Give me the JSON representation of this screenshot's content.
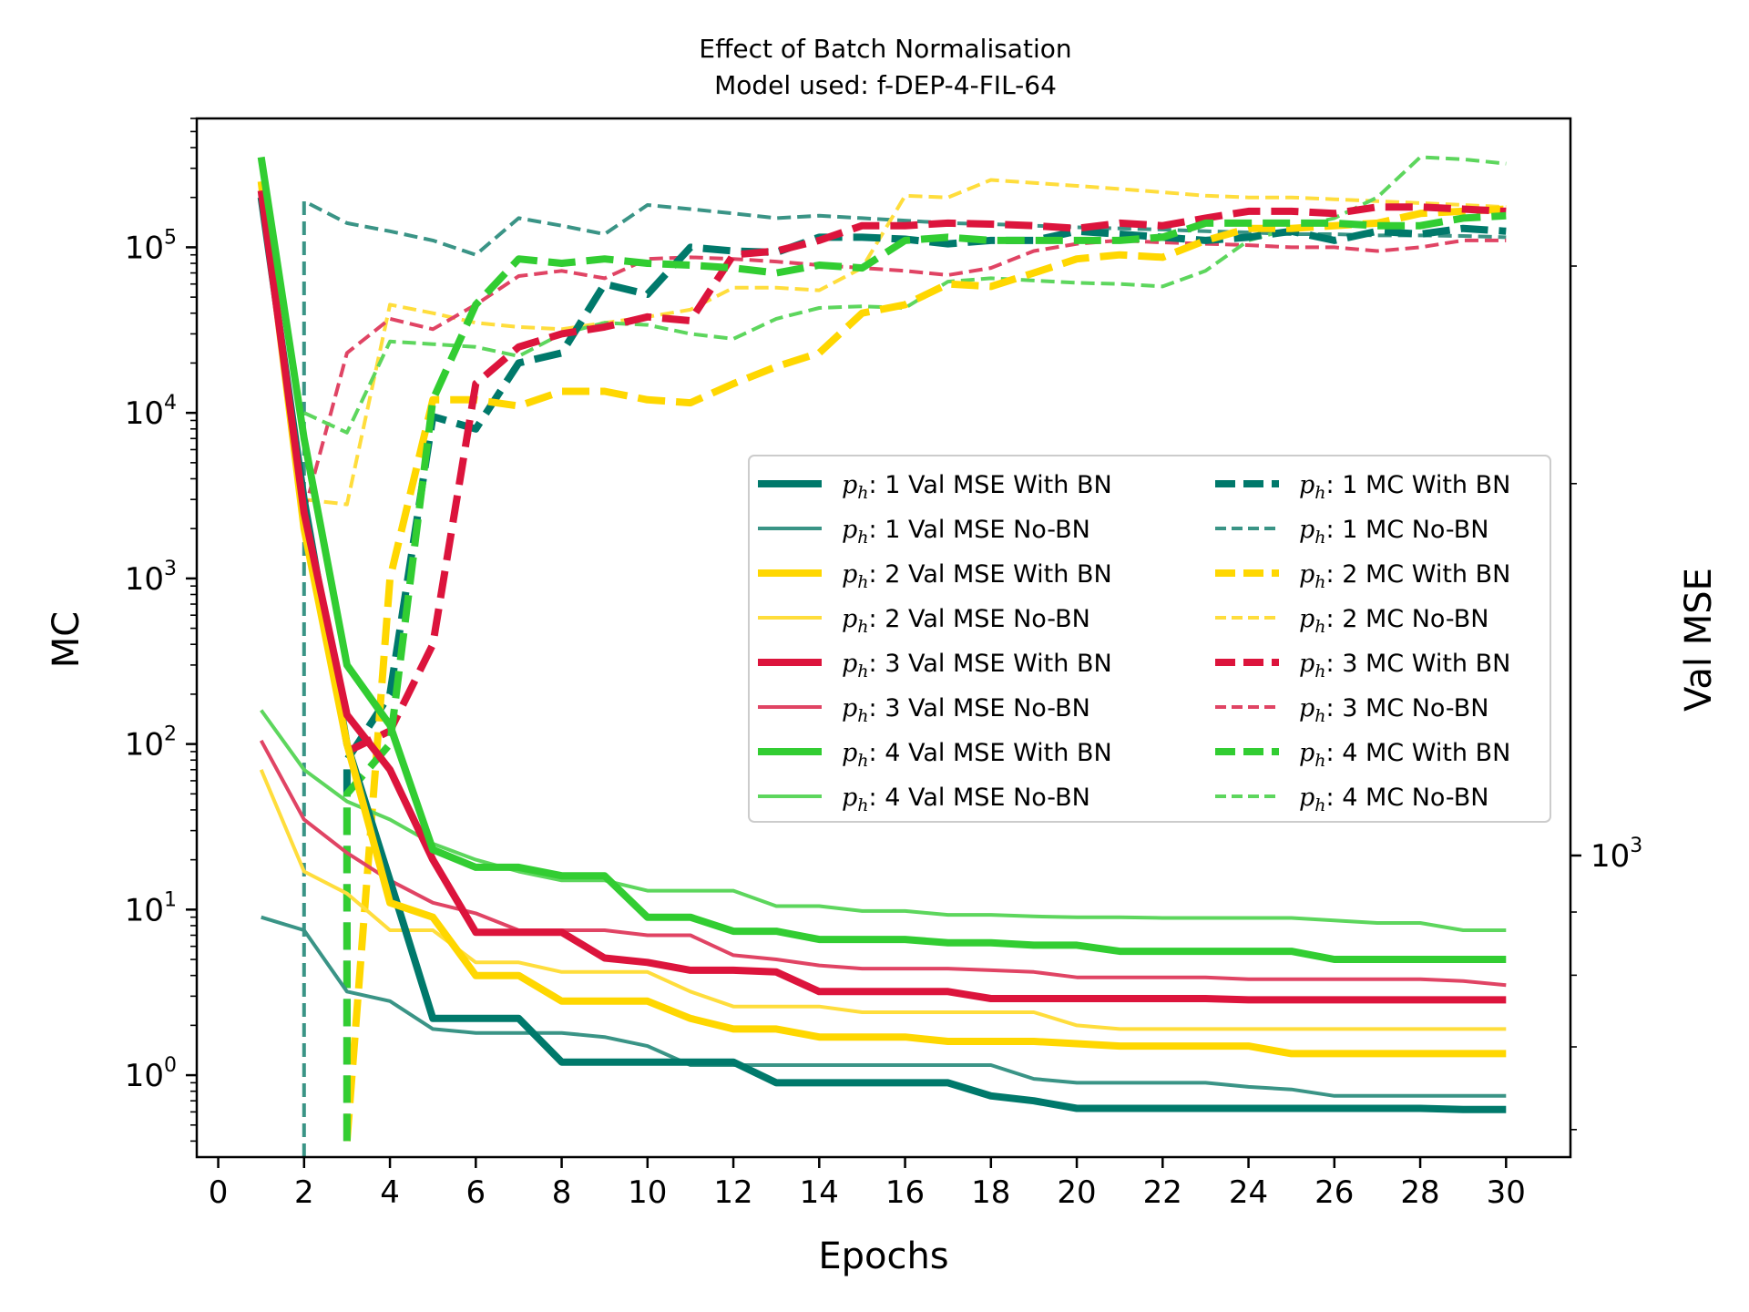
{
  "chart_data": {
    "type": "line",
    "title": "Effect of Batch Normalisation",
    "subtitle": "Model used: f-DEP-4-FIL-64",
    "xlabel": "Epochs",
    "ylabel_left": "MC",
    "ylabel_right": "Val MSE",
    "x_ticks": [
      0,
      2,
      4,
      6,
      8,
      10,
      12,
      14,
      16,
      18,
      20,
      22,
      24,
      26,
      28,
      30
    ],
    "x_range": [
      -0.5,
      31.5
    ],
    "y_left_scale": "log",
    "y_left_range": [
      0.32,
      600000
    ],
    "y_left_ticks": [
      {
        "value": 1,
        "base": "10",
        "exp": "0"
      },
      {
        "value": 10,
        "base": "10",
        "exp": "1"
      },
      {
        "value": 100,
        "base": "10",
        "exp": "2"
      },
      {
        "value": 1000,
        "base": "10",
        "exp": "3"
      },
      {
        "value": 10000,
        "base": "10",
        "exp": "4"
      },
      {
        "value": 100000,
        "base": "10",
        "exp": "5"
      }
    ],
    "y_right_scale": "log",
    "y_right_range": [
      570,
      3950
    ],
    "y_right_ticks": [
      {
        "value": 1000,
        "base": "10",
        "exp": "3"
      }
    ],
    "grid": false,
    "legend_position": "center-right",
    "legend": [
      {
        "ph": "p",
        "sub": "h",
        "text": ": 1 Val MSE With BN",
        "color": "#00796b",
        "style": "solid",
        "width": 8
      },
      {
        "ph": "p",
        "sub": "h",
        "text": ": 1 Val MSE No-BN",
        "color": "#3a9486",
        "style": "solid",
        "width": 4
      },
      {
        "ph": "p",
        "sub": "h",
        "text": ": 2 Val MSE With BN",
        "color": "#ffd700",
        "style": "solid",
        "width": 8
      },
      {
        "ph": "p",
        "sub": "h",
        "text": ": 2 Val MSE No-BN",
        "color": "#ffdd3c",
        "style": "solid",
        "width": 4
      },
      {
        "ph": "p",
        "sub": "h",
        "text": ": 3 Val MSE With BN",
        "color": "#dc143c",
        "style": "solid",
        "width": 8
      },
      {
        "ph": "p",
        "sub": "h",
        "text": ": 3 Val MSE No-BN",
        "color": "#e04464",
        "style": "solid",
        "width": 4
      },
      {
        "ph": "p",
        "sub": "h",
        "text": ": 4 Val MSE With BN",
        "color": "#32cd32",
        "style": "solid",
        "width": 8
      },
      {
        "ph": "p",
        "sub": "h",
        "text": ": 4 Val MSE No-BN",
        "color": "#5dd65d",
        "style": "solid",
        "width": 4
      },
      {
        "ph": "p",
        "sub": "h",
        "text": ": 1 MC With BN",
        "color": "#00796b",
        "style": "dashed",
        "width": 8
      },
      {
        "ph": "p",
        "sub": "h",
        "text": ": 1 MC No-BN",
        "color": "#3a9486",
        "style": "dashed",
        "width": 4
      },
      {
        "ph": "p",
        "sub": "h",
        "text": ": 2 MC With BN",
        "color": "#ffd700",
        "style": "dashed",
        "width": 8
      },
      {
        "ph": "p",
        "sub": "h",
        "text": ": 2 MC No-BN",
        "color": "#ffdd3c",
        "style": "dashed",
        "width": 4
      },
      {
        "ph": "p",
        "sub": "h",
        "text": ": 3 MC With BN",
        "color": "#dc143c",
        "style": "dashed",
        "width": 8
      },
      {
        "ph": "p",
        "sub": "h",
        "text": ": 3 MC No-BN",
        "color": "#e04464",
        "style": "dashed",
        "width": 4
      },
      {
        "ph": "p",
        "sub": "h",
        "text": ": 4 MC With BN",
        "color": "#32cd32",
        "style": "dashed",
        "width": 8
      },
      {
        "ph": "p",
        "sub": "h",
        "text": ": 4 MC No-BN",
        "color": "#5dd65d",
        "style": "dashed",
        "width": 4
      }
    ],
    "series": [
      {
        "legend_index": 9,
        "axis": "left",
        "x": [
          2,
          2,
          3,
          4,
          5,
          6,
          7,
          8,
          9,
          10,
          11,
          12,
          13,
          14,
          15,
          16,
          17,
          18,
          19,
          20,
          21,
          22,
          23,
          24,
          25,
          26,
          27,
          28,
          29,
          30
        ],
        "y": [
          0.32,
          190000,
          140000,
          125000,
          110000,
          90000,
          150000,
          135000,
          120000,
          180000,
          170000,
          160000,
          150000,
          155000,
          150000,
          145000,
          140000,
          138000,
          135000,
          132000,
          130000,
          128000,
          125000,
          123000,
          120000,
          120000,
          118000,
          118000,
          117000,
          115000
        ]
      },
      {
        "legend_index": 11,
        "axis": "left",
        "x": [
          2,
          3,
          4,
          5,
          6,
          7,
          8,
          9,
          10,
          11,
          12,
          13,
          14,
          15,
          16,
          17,
          18,
          19,
          20,
          21,
          22,
          23,
          24,
          25,
          26,
          27,
          28,
          29,
          30
        ],
        "y": [
          3000,
          2800,
          45000,
          40000,
          35000,
          33000,
          32000,
          35000,
          38000,
          42000,
          57000,
          57000,
          55000,
          75000,
          205000,
          200000,
          255000,
          245000,
          235000,
          225000,
          215000,
          205000,
          200000,
          200000,
          195000,
          190000,
          185000,
          180000,
          175000
        ]
      },
      {
        "legend_index": 13,
        "axis": "left",
        "x": [
          2,
          3,
          4,
          5,
          6,
          7,
          8,
          9,
          10,
          11,
          12,
          13,
          14,
          15,
          16,
          17,
          18,
          19,
          20,
          21,
          22,
          23,
          24,
          25,
          26,
          27,
          28,
          29,
          30
        ],
        "y": [
          2500,
          23000,
          37000,
          32000,
          45000,
          67000,
          72000,
          65000,
          85000,
          87000,
          85000,
          82000,
          78000,
          75000,
          72000,
          68000,
          75000,
          95000,
          105000,
          110000,
          107000,
          105000,
          103000,
          100000,
          100000,
          95000,
          100000,
          110000,
          110000
        ]
      },
      {
        "legend_index": 15,
        "axis": "left",
        "x": [
          2,
          3,
          4,
          5,
          6,
          7,
          8,
          9,
          10,
          11,
          12,
          13,
          14,
          15,
          16,
          17,
          18,
          19,
          20,
          21,
          22,
          23,
          24,
          25,
          26,
          27,
          28,
          29,
          30
        ],
        "y": [
          10000,
          7600,
          27000,
          26000,
          25000,
          22000,
          30000,
          35000,
          34000,
          30000,
          28000,
          37000,
          43000,
          44000,
          43000,
          62000,
          65000,
          63000,
          61000,
          60000,
          58000,
          72000,
          110000,
          130000,
          150000,
          200000,
          350000,
          340000,
          320000
        ]
      },
      {
        "legend_index": 8,
        "axis": "left",
        "x": [
          3,
          3,
          4,
          5,
          6,
          7,
          8,
          9,
          10,
          11,
          12,
          13,
          14,
          15,
          16,
          17,
          18,
          19,
          20,
          21,
          22,
          23,
          24,
          25,
          26,
          27,
          28,
          29,
          30
        ],
        "y": [
          0.4,
          80,
          200,
          9500,
          8000,
          20000,
          23000,
          60000,
          52000,
          100000,
          95000,
          93000,
          115000,
          115000,
          112000,
          105000,
          110000,
          110000,
          125000,
          120000,
          115000,
          110000,
          115000,
          125000,
          110000,
          125000,
          120000,
          130000,
          125000
        ]
      },
      {
        "legend_index": 10,
        "axis": "left",
        "x": [
          3,
          4,
          5,
          6,
          7,
          8,
          9,
          10,
          11,
          12,
          13,
          14,
          15,
          16,
          17,
          18,
          19,
          20,
          21,
          22,
          23,
          24,
          25,
          26,
          27,
          28,
          29,
          30
        ],
        "y": [
          0.4,
          1000,
          12000,
          12000,
          11000,
          13500,
          13500,
          12000,
          11500,
          15000,
          19000,
          23000,
          40000,
          45000,
          60000,
          58000,
          70000,
          85000,
          90000,
          87000,
          110000,
          130000,
          130000,
          135000,
          140000,
          160000,
          165000,
          170000
        ]
      },
      {
        "legend_index": 12,
        "axis": "left",
        "x": [
          3,
          4,
          5,
          6,
          7,
          8,
          9,
          10,
          11,
          12,
          13,
          14,
          15,
          16,
          17,
          18,
          19,
          20,
          21,
          22,
          23,
          24,
          25,
          26,
          27,
          28,
          29,
          30
        ],
        "y": [
          90,
          120,
          400,
          15000,
          25000,
          30000,
          33000,
          38000,
          36000,
          90000,
          95000,
          110000,
          135000,
          135000,
          140000,
          138000,
          135000,
          130000,
          140000,
          135000,
          150000,
          165000,
          165000,
          160000,
          175000,
          175000,
          170000,
          165000
        ]
      },
      {
        "legend_index": 14,
        "axis": "left",
        "x": [
          3,
          3,
          4,
          5,
          6,
          7,
          8,
          9,
          10,
          11,
          12,
          13,
          14,
          15,
          16,
          17,
          18,
          19,
          20,
          21,
          22,
          23,
          24,
          25,
          26,
          27,
          28,
          29,
          30
        ],
        "y": [
          0.4,
          50,
          100,
          12000,
          45000,
          85000,
          80000,
          85000,
          80000,
          78000,
          75000,
          70000,
          78000,
          75000,
          110000,
          115000,
          110000,
          110000,
          110000,
          110000,
          115000,
          140000,
          140000,
          140000,
          140000,
          135000,
          135000,
          150000,
          155000
        ]
      },
      {
        "legend_index": 1,
        "axis": "left",
        "x": [
          1,
          2,
          3,
          4,
          5,
          6,
          7,
          8,
          9,
          10,
          11,
          12,
          13,
          14,
          15,
          16,
          17,
          18,
          19,
          20,
          21,
          22,
          23,
          24,
          25,
          26,
          27,
          28,
          29,
          30
        ],
        "y": [
          9,
          7.5,
          3.2,
          2.8,
          1.9,
          1.8,
          1.8,
          1.8,
          1.7,
          1.5,
          1.15,
          1.15,
          1.15,
          1.15,
          1.15,
          1.15,
          1.15,
          1.15,
          0.95,
          0.9,
          0.9,
          0.9,
          0.9,
          0.85,
          0.82,
          0.75,
          0.75,
          0.75,
          0.75,
          0.75
        ]
      },
      {
        "legend_index": 3,
        "axis": "left",
        "x": [
          1,
          2,
          3,
          4,
          5,
          6,
          7,
          8,
          9,
          10,
          11,
          12,
          13,
          14,
          15,
          16,
          17,
          18,
          19,
          20,
          21,
          22,
          23,
          24,
          25,
          26,
          27,
          28,
          29,
          30
        ],
        "y": [
          70,
          17,
          12.5,
          7.5,
          7.5,
          4.8,
          4.8,
          4.2,
          4.2,
          4.2,
          3.2,
          2.6,
          2.6,
          2.6,
          2.4,
          2.4,
          2.4,
          2.4,
          2.4,
          2.0,
          1.9,
          1.9,
          1.9,
          1.9,
          1.9,
          1.9,
          1.9,
          1.9,
          1.9,
          1.9
        ]
      },
      {
        "legend_index": 5,
        "axis": "left",
        "x": [
          1,
          2,
          3,
          4,
          5,
          6,
          7,
          8,
          9,
          10,
          11,
          12,
          13,
          14,
          15,
          16,
          17,
          18,
          19,
          20,
          21,
          22,
          23,
          24,
          25,
          26,
          27,
          28,
          29,
          30
        ],
        "y": [
          105,
          35,
          22,
          15,
          11,
          9.5,
          7.5,
          7.5,
          7.5,
          7,
          7,
          5.3,
          5,
          4.6,
          4.4,
          4.4,
          4.4,
          4.3,
          4.2,
          3.9,
          3.9,
          3.9,
          3.9,
          3.8,
          3.8,
          3.8,
          3.8,
          3.8,
          3.7,
          3.5
        ]
      },
      {
        "legend_index": 7,
        "axis": "left",
        "x": [
          1,
          2,
          3,
          4,
          5,
          6,
          7,
          8,
          9,
          10,
          11,
          12,
          13,
          14,
          15,
          16,
          17,
          18,
          19,
          20,
          21,
          22,
          23,
          24,
          25,
          26,
          27,
          28,
          29,
          30
        ],
        "y": [
          160,
          70,
          45,
          35,
          25,
          20,
          17,
          15,
          15,
          13,
          13,
          13,
          10.5,
          10.5,
          9.8,
          9.8,
          9.3,
          9.3,
          9.1,
          9.0,
          9.0,
          8.9,
          8.9,
          8.9,
          8.9,
          8.6,
          8.3,
          8.3,
          7.5,
          7.5
        ]
      },
      {
        "legend_index": 0,
        "axis": "left",
        "x": [
          1,
          2,
          3,
          4,
          5,
          6,
          7,
          8,
          9,
          10,
          11,
          12,
          13,
          14,
          15,
          16,
          17,
          18,
          19,
          20,
          21,
          22,
          23,
          24,
          25,
          26,
          27,
          28,
          29,
          30
        ],
        "y": [
          200000,
          3000,
          100,
          15,
          2.2,
          2.2,
          2.2,
          1.2,
          1.2,
          1.2,
          1.2,
          1.2,
          0.9,
          0.9,
          0.9,
          0.9,
          0.9,
          0.75,
          0.7,
          0.63,
          0.63,
          0.63,
          0.63,
          0.63,
          0.63,
          0.63,
          0.63,
          0.63,
          0.62,
          0.62
        ]
      },
      {
        "legend_index": 2,
        "axis": "left",
        "x": [
          1,
          2,
          3,
          4,
          5,
          6,
          7,
          8,
          9,
          10,
          11,
          12,
          13,
          14,
          15,
          16,
          17,
          18,
          19,
          20,
          21,
          22,
          23,
          24,
          25,
          26,
          27,
          28,
          29,
          30
        ],
        "y": [
          250000,
          2000,
          100,
          11,
          9,
          4,
          4,
          2.8,
          2.8,
          2.8,
          2.2,
          1.9,
          1.9,
          1.7,
          1.7,
          1.7,
          1.6,
          1.6,
          1.6,
          1.55,
          1.5,
          1.5,
          1.5,
          1.5,
          1.35,
          1.35,
          1.35,
          1.35,
          1.35,
          1.35
        ]
      },
      {
        "legend_index": 4,
        "axis": "left",
        "x": [
          1,
          2,
          3,
          4,
          5,
          6,
          7,
          8,
          9,
          10,
          11,
          12,
          13,
          14,
          15,
          16,
          17,
          18,
          19,
          20,
          21,
          22,
          23,
          24,
          25,
          26,
          27,
          28,
          29,
          30
        ],
        "y": [
          220000,
          2500,
          150,
          70,
          20,
          7.3,
          7.3,
          7.3,
          5.1,
          4.8,
          4.3,
          4.3,
          4.2,
          3.2,
          3.2,
          3.2,
          3.2,
          2.9,
          2.9,
          2.9,
          2.9,
          2.9,
          2.9,
          2.85,
          2.85,
          2.85,
          2.85,
          2.85,
          2.85,
          2.85
        ]
      },
      {
        "legend_index": 6,
        "axis": "left",
        "x": [
          1,
          2,
          3,
          4,
          5,
          6,
          7,
          8,
          9,
          10,
          11,
          12,
          13,
          14,
          15,
          16,
          17,
          18,
          19,
          20,
          21,
          22,
          23,
          24,
          25,
          26,
          27,
          28,
          29,
          30
        ],
        "y": [
          350000,
          7000,
          300,
          130,
          23,
          18,
          18,
          16,
          16,
          9,
          9,
          7.4,
          7.4,
          6.6,
          6.6,
          6.6,
          6.3,
          6.3,
          6.1,
          6.1,
          5.6,
          5.6,
          5.6,
          5.6,
          5.6,
          5.0,
          5.0,
          5.0,
          5.0,
          5.0
        ]
      }
    ]
  }
}
